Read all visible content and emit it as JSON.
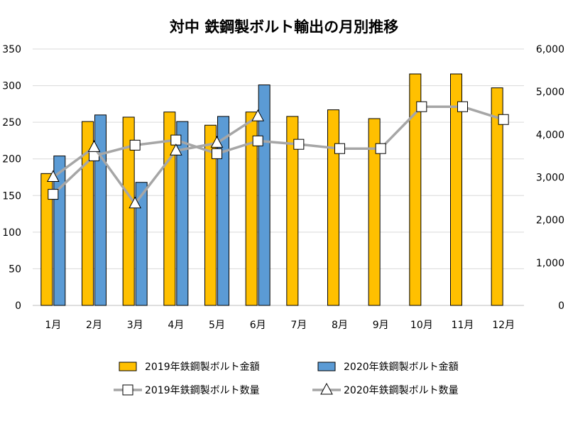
{
  "chart_data": {
    "type": "bar",
    "title": "対中 鉄鋼製ボルト輸出の月別推移",
    "categories": [
      "1月",
      "2月",
      "3月",
      "4月",
      "5月",
      "6月",
      "7月",
      "8月",
      "9月",
      "10月",
      "11月",
      "12月"
    ],
    "left_axis": {
      "min": 0,
      "max": 350,
      "step": 50,
      "tick_labels": [
        "0",
        "50",
        "100",
        "150",
        "200",
        "250",
        "300",
        "350"
      ]
    },
    "right_axis": {
      "min": 0,
      "max": 6000,
      "step": 1000,
      "tick_labels": [
        "0",
        "1,000",
        "2,000",
        "3,000",
        "4,000",
        "5,000",
        "6,000"
      ]
    },
    "grid": true,
    "legend_position": "bottom",
    "series": [
      {
        "name": "2019年鉄鋼製ボルト金額",
        "kind": "bar",
        "axis": "left",
        "color": "#FFC000",
        "values": [
          180,
          251,
          257,
          264,
          246,
          264,
          258,
          267,
          255,
          316,
          316,
          297
        ]
      },
      {
        "name": "2020年鉄鋼製ボルト金額",
        "kind": "bar",
        "axis": "left",
        "color": "#5B9BD5",
        "values": [
          204,
          260,
          168,
          251,
          258,
          301,
          null,
          null,
          null,
          null,
          null,
          null
        ]
      },
      {
        "name": "2019年鉄鋼製ボルト数量",
        "kind": "line",
        "marker": "square",
        "axis": "right",
        "color": "#A6A6A6",
        "values": [
          2600,
          3500,
          3750,
          3870,
          3550,
          3850,
          3770,
          3670,
          3670,
          4650,
          4650,
          4350
        ]
      },
      {
        "name": "2020年鉄鋼製ボルト数量",
        "kind": "line",
        "marker": "triangle",
        "axis": "right",
        "color": "#A6A6A6",
        "values": [
          3000,
          3700,
          2380,
          3620,
          3800,
          4420,
          null,
          null,
          null,
          null,
          null,
          null
        ]
      }
    ]
  }
}
